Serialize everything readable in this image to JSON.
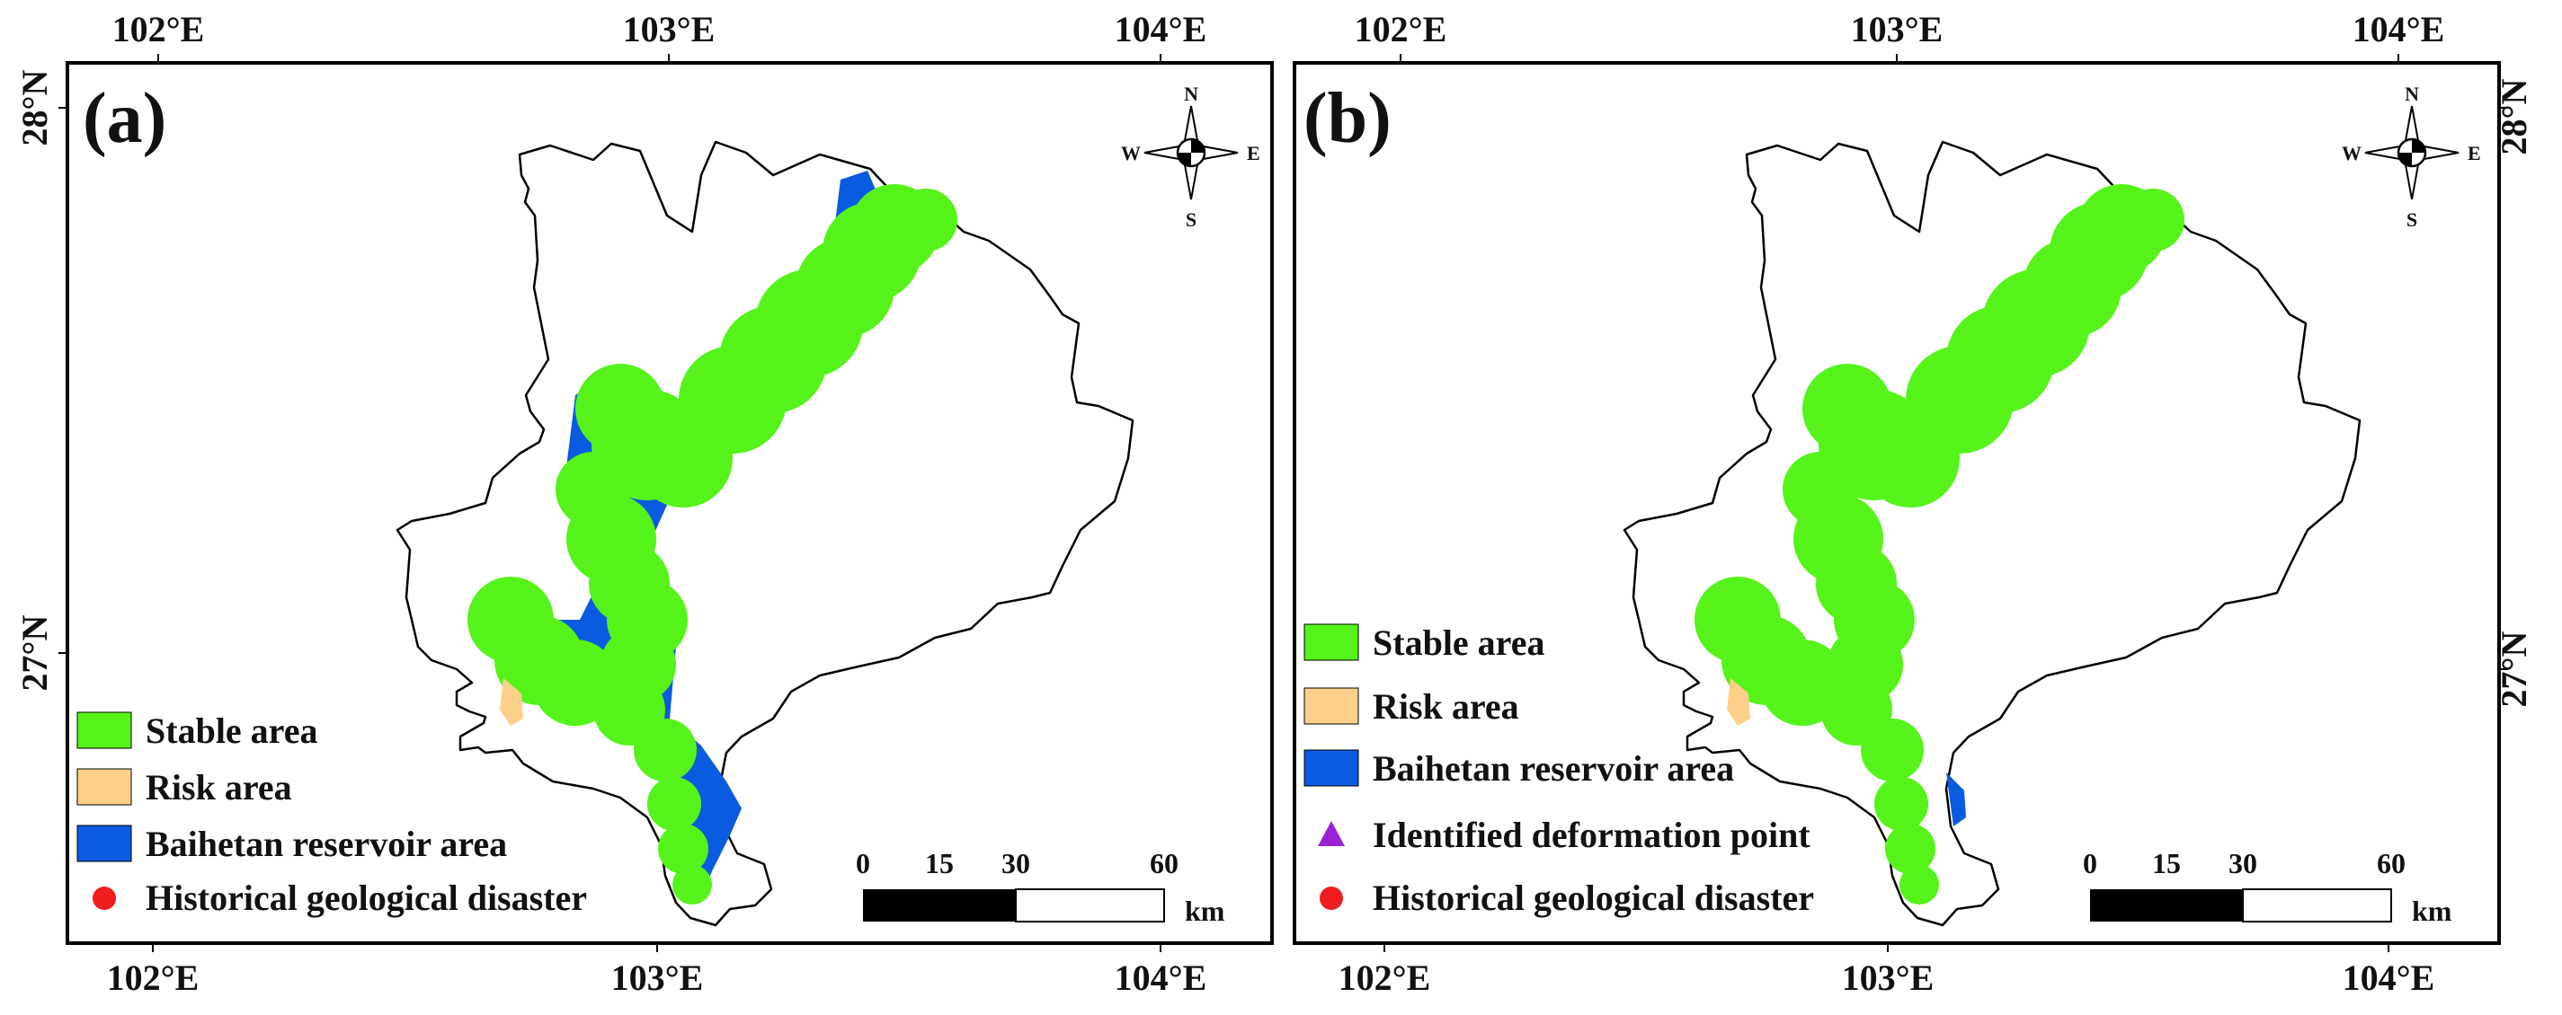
{
  "panels": [
    {
      "label": "(a)",
      "top_ticks": [
        "102°E",
        "103°E",
        "104°E"
      ],
      "bottom_ticks": [
        "102°E",
        "103°E",
        "104°E"
      ],
      "left_ticks": [
        "28°N",
        "27°N"
      ],
      "compass": {
        "n": "N",
        "s": "S",
        "e": "E",
        "w": "W"
      },
      "scalebar": {
        "ticks": [
          "0",
          "15",
          "30",
          "60"
        ],
        "unit": "km"
      },
      "legend": [
        {
          "label": "Stable area",
          "symbol": "box",
          "color": "#55f31a"
        },
        {
          "label": "Risk area",
          "symbol": "box",
          "color": "#fdd08a"
        },
        {
          "label": "Baihetan reservoir area",
          "symbol": "box",
          "color": "#0a5be0"
        },
        {
          "label": "Historical geological disaster",
          "symbol": "circle",
          "color": "#ef1d1d"
        }
      ]
    },
    {
      "label": "(b)",
      "top_ticks": [
        "102°E",
        "103°E",
        "104°E"
      ],
      "bottom_ticks": [
        "102°E",
        "103°E",
        "104°E"
      ],
      "right_ticks": [
        "28°N",
        "27°N"
      ],
      "compass": {
        "n": "N",
        "s": "S",
        "e": "E",
        "w": "W"
      },
      "scalebar": {
        "ticks": [
          "0",
          "15",
          "30",
          "60"
        ],
        "unit": "km"
      },
      "legend": [
        {
          "label": "Stable area",
          "symbol": "box",
          "color": "#55f31a"
        },
        {
          "label": "Risk area",
          "symbol": "box",
          "color": "#fdd08a"
        },
        {
          "label": "Baihetan reservoir area",
          "symbol": "box",
          "color": "#0a5be0"
        },
        {
          "label": "Identified deformation point",
          "symbol": "triangle",
          "color": "#9b22d4"
        },
        {
          "label": "Historical geological disaster",
          "symbol": "circle",
          "color": "#ef1d1d"
        }
      ]
    }
  ]
}
